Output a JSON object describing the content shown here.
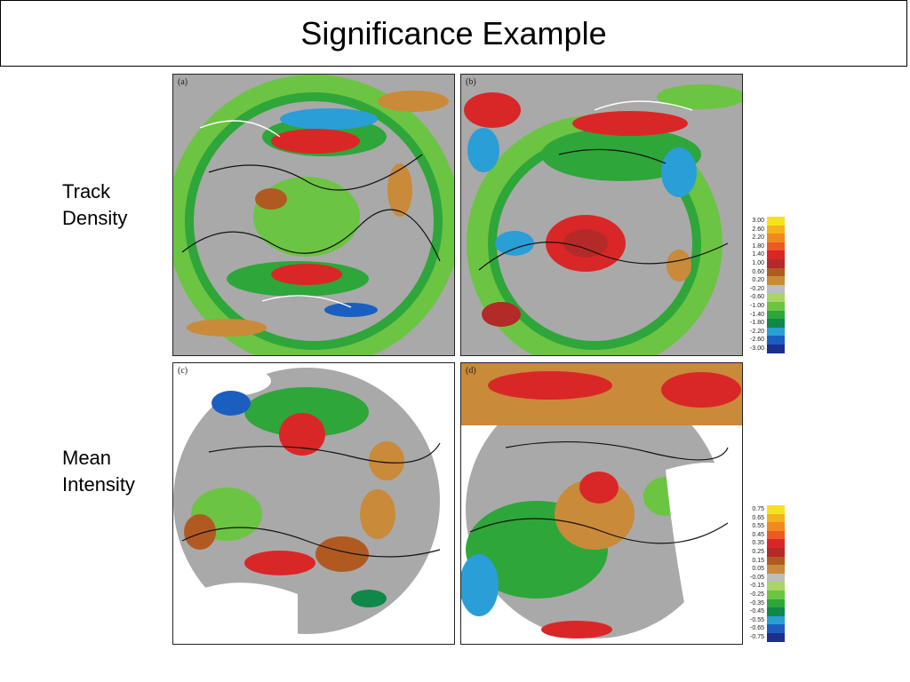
{
  "title": "Significance Example",
  "rows": {
    "track_density": {
      "line1": "Track",
      "line2": "Density"
    },
    "mean_intensity": {
      "line1": "Mean",
      "line2": "Intensity"
    }
  },
  "panels": [
    {
      "id": "a",
      "letter": "(a)"
    },
    {
      "id": "b",
      "letter": "(b)"
    },
    {
      "id": "c",
      "letter": "(c)"
    },
    {
      "id": "d",
      "letter": "(d)"
    }
  ],
  "colorbars": {
    "track_density": {
      "labels": [
        "3.00",
        "2.60",
        "2.20",
        "1.80",
        "1.40",
        "1.00",
        "0.60",
        "0.20",
        "-0.20",
        "-0.60",
        "-1.00",
        "-1.40",
        "-1.80",
        "-2.20",
        "-2.60",
        "-3.00"
      ]
    },
    "mean_intensity": {
      "labels": [
        "0.75",
        "0.65",
        "0.55",
        "0.45",
        "0.35",
        "0.25",
        "0.15",
        "0.05",
        "-0.05",
        "-0.15",
        "-0.25",
        "-0.35",
        "-0.45",
        "-0.55",
        "-0.65",
        "-0.75"
      ]
    },
    "colors": [
      "#f7e11e",
      "#f5b21c",
      "#f08a1e",
      "#ec5a24",
      "#d92727",
      "#b42a28",
      "#b05a22",
      "#c98a3a",
      "#bdbdbd",
      "#a6d663",
      "#6cc443",
      "#2ea63a",
      "#10884a",
      "#2a9ed6",
      "#1a5fc0",
      "#1c2f8e"
    ]
  }
}
